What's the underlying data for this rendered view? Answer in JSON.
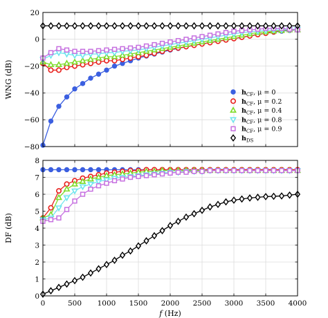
{
  "chart_data": [
    {
      "type": "line",
      "ylabel": "WNG (dB)",
      "xlabel": "",
      "xlim": [
        0,
        4000
      ],
      "ylim": [
        -80,
        20
      ],
      "xticks": [
        0,
        500,
        1000,
        1500,
        2000,
        2500,
        3000,
        3500,
        4000
      ],
      "xtick_labels": [
        "",
        "",
        "",
        "",
        "",
        "",
        "",
        "",
        ""
      ],
      "yticks": [
        -80,
        -60,
        -40,
        -20,
        0,
        20
      ],
      "ytick_labels": [
        "−80",
        "−60",
        "−40",
        "−20",
        "0",
        "20"
      ],
      "grid": true,
      "legend_placement": "right",
      "x": [
        0,
        125,
        250,
        375,
        500,
        625,
        750,
        875,
        1000,
        1125,
        1250,
        1375,
        1500,
        1625,
        1750,
        1875,
        2000,
        2125,
        2250,
        2375,
        2500,
        2625,
        2750,
        2875,
        3000,
        3125,
        3250,
        3375,
        3500,
        3625,
        3750,
        3875,
        4000
      ],
      "series": [
        {
          "name_main": "h",
          "name_sub": "CF",
          "name_suffix": ", μ = 0",
          "marker": "circle-filled",
          "color": "#3b5fe0",
          "values": [
            -79,
            -61,
            -50,
            -43,
            -37,
            -33,
            -29,
            -26,
            -23,
            -20,
            -18,
            -16,
            -14,
            -12.5,
            -11,
            -9.5,
            -8,
            -6.8,
            -5.6,
            -4.5,
            -3.4,
            -2.4,
            -1.4,
            -0.5,
            0.5,
            1.5,
            2.5,
            3.5,
            4.5,
            5.3,
            6,
            6.6,
            7
          ]
        },
        {
          "name_main": "h",
          "name_sub": "CF",
          "name_suffix": ", μ = 0.2",
          "marker": "circle-open",
          "color": "#e8201c",
          "values": [
            -18,
            -23,
            -23,
            -21,
            -20,
            -19,
            -18,
            -17,
            -16,
            -16,
            -15,
            -14,
            -13,
            -12,
            -10.5,
            -9,
            -7.5,
            -6.5,
            -5.5,
            -4.5,
            -3.5,
            -2.5,
            -1.5,
            -0.5,
            0.5,
            1.5,
            2.5,
            3.5,
            4.5,
            5.5,
            6.5,
            7,
            7.5
          ]
        },
        {
          "name_main": "h",
          "name_sub": "CF",
          "name_suffix": ", μ = 0.4",
          "marker": "triangle-up",
          "color": "#7edc2a",
          "values": [
            -17,
            -19,
            -19,
            -18,
            -17,
            -16,
            -15,
            -14,
            -13,
            -13,
            -12,
            -11,
            -10,
            -9,
            -8,
            -7,
            -6,
            -5,
            -4,
            -3,
            -2,
            -1,
            0,
            1,
            2,
            3,
            4,
            5,
            5.5,
            6,
            6.5,
            7,
            7
          ]
        },
        {
          "name_main": "h",
          "name_sub": "CF",
          "name_suffix": ", μ = 0.8",
          "marker": "triangle-down",
          "color": "#6fe5ee",
          "values": [
            -15,
            -12,
            -10,
            -11,
            -12,
            -12,
            -11,
            -11,
            -10,
            -10,
            -9,
            -8.5,
            -8,
            -7,
            -6,
            -5,
            -4,
            -3,
            -2,
            -1,
            0,
            1,
            2,
            3,
            4,
            5,
            5.5,
            6,
            6.5,
            7,
            7,
            7.5,
            7.5
          ]
        },
        {
          "name_main": "h",
          "name_sub": "CF",
          "name_suffix": ", μ = 0.9",
          "marker": "square-open",
          "color": "#c66fe0",
          "values": [
            -14,
            -10,
            -7,
            -8,
            -9,
            -9,
            -9,
            -8.5,
            -8,
            -7.5,
            -7,
            -6.5,
            -6,
            -5,
            -4,
            -3,
            -2,
            -1,
            0,
            1,
            2,
            3,
            4,
            5,
            6,
            6.5,
            7,
            7.5,
            8,
            8,
            8,
            7.5,
            7
          ]
        },
        {
          "name_main": "h",
          "name_sub": "DS",
          "name_suffix": "",
          "marker": "diamond-open",
          "color": "#000000",
          "values": [
            10,
            10,
            10,
            10,
            10,
            10,
            10,
            10,
            10,
            10,
            10,
            10,
            10,
            10,
            10,
            10,
            10,
            10,
            10,
            10,
            10,
            10,
            10,
            10,
            10,
            10,
            10,
            10,
            10,
            10,
            10,
            10,
            10
          ]
        }
      ]
    },
    {
      "type": "line",
      "ylabel": "DF (dB)",
      "xlabel_main": "f",
      "xlabel_unit": " (Hz)",
      "xlim": [
        0,
        4000
      ],
      "ylim": [
        0,
        8
      ],
      "xticks": [
        0,
        500,
        1000,
        1500,
        2000,
        2500,
        3000,
        3500,
        4000
      ],
      "xtick_labels": [
        "0",
        "500",
        "1000",
        "1500",
        "2000",
        "2500",
        "3000",
        "3500",
        "4000"
      ],
      "yticks": [
        0,
        1,
        2,
        3,
        4,
        5,
        6,
        7,
        8
      ],
      "ytick_labels": [
        "0",
        "1",
        "2",
        "3",
        "4",
        "5",
        "6",
        "7",
        "8"
      ],
      "grid": true,
      "x": [
        0,
        125,
        250,
        375,
        500,
        625,
        750,
        875,
        1000,
        1125,
        1250,
        1375,
        1500,
        1625,
        1750,
        1875,
        2000,
        2125,
        2250,
        2375,
        2500,
        2625,
        2750,
        2875,
        3000,
        3125,
        3250,
        3375,
        3500,
        3625,
        3750,
        3875,
        4000
      ],
      "series": [
        {
          "marker": "circle-filled",
          "color": "#3b5fe0",
          "values": [
            7.45,
            7.45,
            7.45,
            7.45,
            7.45,
            7.45,
            7.45,
            7.45,
            7.45,
            7.45,
            7.45,
            7.45,
            7.45,
            7.45,
            7.45,
            7.45,
            7.45,
            7.45,
            7.45,
            7.45,
            7.45,
            7.45,
            7.45,
            7.45,
            7.45,
            7.45,
            7.45,
            7.45,
            7.45,
            7.45,
            7.45,
            7.45,
            7.45
          ]
        },
        {
          "marker": "circle-open",
          "color": "#e8201c",
          "values": [
            4.6,
            5.2,
            6.2,
            6.6,
            6.8,
            6.95,
            7.05,
            7.15,
            7.25,
            7.3,
            7.35,
            7.4,
            7.4,
            7.45,
            7.45,
            7.45,
            7.45,
            7.45,
            7.45,
            7.45,
            7.45,
            7.45,
            7.45,
            7.45,
            7.45,
            7.45,
            7.45,
            7.45,
            7.45,
            7.45,
            7.45,
            7.45,
            7.45
          ]
        },
        {
          "marker": "triangle-up",
          "color": "#7edc2a",
          "values": [
            4.6,
            4.8,
            5.8,
            6.3,
            6.6,
            6.75,
            6.9,
            7.0,
            7.1,
            7.15,
            7.2,
            7.25,
            7.3,
            7.35,
            7.35,
            7.4,
            7.4,
            7.4,
            7.4,
            7.4,
            7.4,
            7.4,
            7.4,
            7.4,
            7.4,
            7.4,
            7.4,
            7.4,
            7.4,
            7.4,
            7.4,
            7.4,
            7.4
          ]
        },
        {
          "marker": "triangle-down",
          "color": "#6fe5ee",
          "values": [
            4.5,
            4.6,
            5.2,
            5.8,
            6.2,
            6.45,
            6.6,
            6.75,
            6.85,
            6.95,
            7.0,
            7.05,
            7.1,
            7.15,
            7.2,
            7.25,
            7.3,
            7.3,
            7.35,
            7.35,
            7.35,
            7.4,
            7.4,
            7.4,
            7.4,
            7.4,
            7.4,
            7.4,
            7.4,
            7.4,
            7.4,
            7.4,
            7.4
          ]
        },
        {
          "marker": "square-open",
          "color": "#c66fe0",
          "values": [
            4.4,
            4.5,
            4.6,
            5.1,
            5.6,
            6.0,
            6.3,
            6.5,
            6.65,
            6.8,
            6.9,
            7.0,
            7.05,
            7.1,
            7.15,
            7.2,
            7.25,
            7.3,
            7.3,
            7.35,
            7.35,
            7.4,
            7.4,
            7.4,
            7.4,
            7.4,
            7.4,
            7.4,
            7.4,
            7.4,
            7.4,
            7.4,
            7.4
          ]
        },
        {
          "marker": "diamond-open",
          "color": "#000000",
          "values": [
            0.1,
            0.3,
            0.5,
            0.7,
            0.9,
            1.1,
            1.35,
            1.6,
            1.85,
            2.1,
            2.4,
            2.65,
            2.95,
            3.25,
            3.55,
            3.85,
            4.15,
            4.4,
            4.65,
            4.85,
            5.05,
            5.25,
            5.4,
            5.55,
            5.65,
            5.72,
            5.78,
            5.82,
            5.86,
            5.88,
            5.9,
            5.95,
            6.0
          ]
        }
      ]
    }
  ]
}
